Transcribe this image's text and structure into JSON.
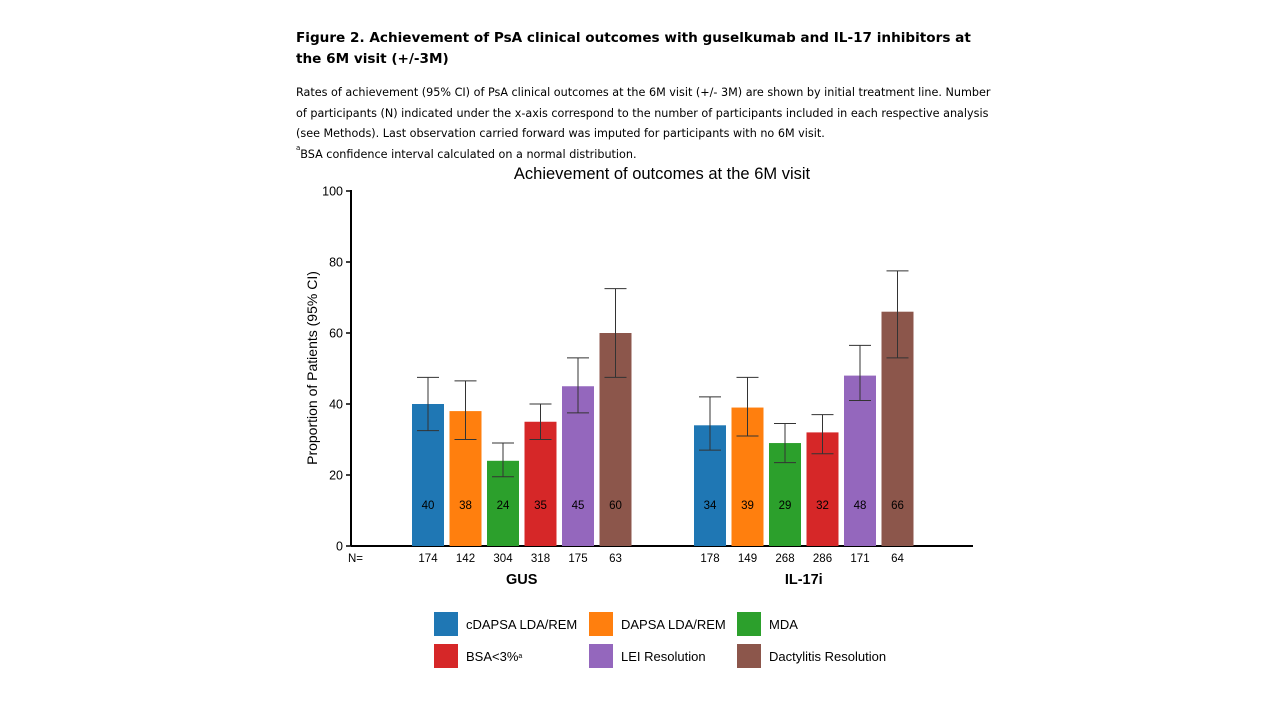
{
  "figure": {
    "title": "Figure 2. Achievement of PsA clinical outcomes with guselkumab and IL-17 inhibitors at the 6M visit (+/-3M)",
    "caption_main": "Rates of achievement (95% CI) of PsA clinical outcomes at the 6M visit (+/- 3M) are shown by initial treatment line. Number of participants (N) indicated under the x-axis correspond to the number of participants included in each respective analysis (see Methods). Last observation carried forward was imputed for participants with no 6M visit.",
    "caption_footnote_marker": "a",
    "caption_footnote": "BSA confidence interval calculated on a normal distribution."
  },
  "chart_data": {
    "type": "bar",
    "title": "Achievement of outcomes at the 6M visit",
    "ylabel": "Proportion of Patients (95% CI)",
    "xlabel": "",
    "ylim": [
      0,
      100
    ],
    "yticks": [
      0,
      20,
      40,
      60,
      80,
      100
    ],
    "n_label": "N=",
    "groups": [
      {
        "name": "GUS",
        "values": [
          40,
          38,
          24,
          35,
          45,
          60
        ],
        "ci_low": [
          32.5,
          30,
          19.5,
          30,
          37.5,
          47.5
        ],
        "ci_high": [
          47.5,
          46.5,
          29,
          40,
          53,
          72.5
        ],
        "n": [
          "174",
          "142",
          "304",
          "318",
          "175",
          "63"
        ]
      },
      {
        "name": "IL-17i",
        "values": [
          34,
          39,
          29,
          32,
          48,
          66
        ],
        "ci_low": [
          27,
          31,
          23.5,
          26,
          41,
          53
        ],
        "ci_high": [
          42,
          47.5,
          34.5,
          37,
          56.5,
          77.5
        ],
        "n": [
          "178",
          "149",
          "268",
          "286",
          "171",
          "64"
        ]
      }
    ],
    "series": [
      {
        "name": "cDAPSA LDA/REM",
        "color": "#1f77b4"
      },
      {
        "name": "DAPSA LDA/REM",
        "color": "#ff7f0e"
      },
      {
        "name": "MDA",
        "color": "#2ca02c"
      },
      {
        "name": "BSA<3%",
        "superscript": "a",
        "color": "#d62728"
      },
      {
        "name": "LEI Resolution",
        "color": "#9467bd"
      },
      {
        "name": "Dactylitis Resolution",
        "color": "#8c564b"
      }
    ],
    "legend_position": "bottom"
  }
}
